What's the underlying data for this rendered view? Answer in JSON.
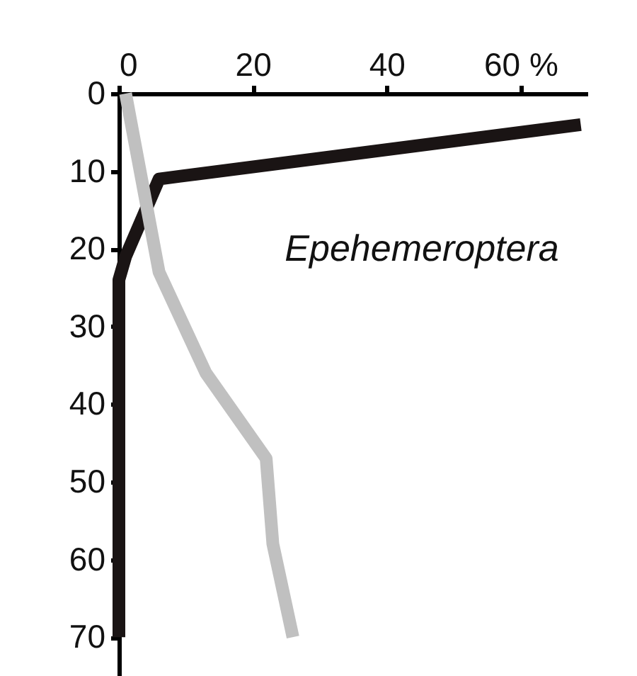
{
  "chart_data": {
    "type": "line",
    "annotations": [
      "Epehemeroptera"
    ],
    "series": [
      {
        "color": "#1a1414",
        "x": [
          69,
          6,
          1,
          0,
          0
        ],
        "values": [
          4,
          11,
          21,
          24,
          70
        ]
      },
      {
        "color": "#c0c0c0",
        "x": [
          1,
          6,
          13,
          22,
          23,
          26
        ],
        "values": [
          0,
          23,
          36,
          47,
          58,
          70
        ]
      }
    ],
    "xlim": [
      0,
      70
    ],
    "xticks": [
      0,
      20,
      40,
      {
        "value": 60,
        "label": "60 %"
      }
    ],
    "ylim": [
      75,
      0
    ],
    "yticks": [
      0,
      10,
      20,
      30,
      40,
      50,
      60,
      70
    ],
    "grid": false,
    "legend": false,
    "line_style": "solid",
    "marker": "none"
  }
}
